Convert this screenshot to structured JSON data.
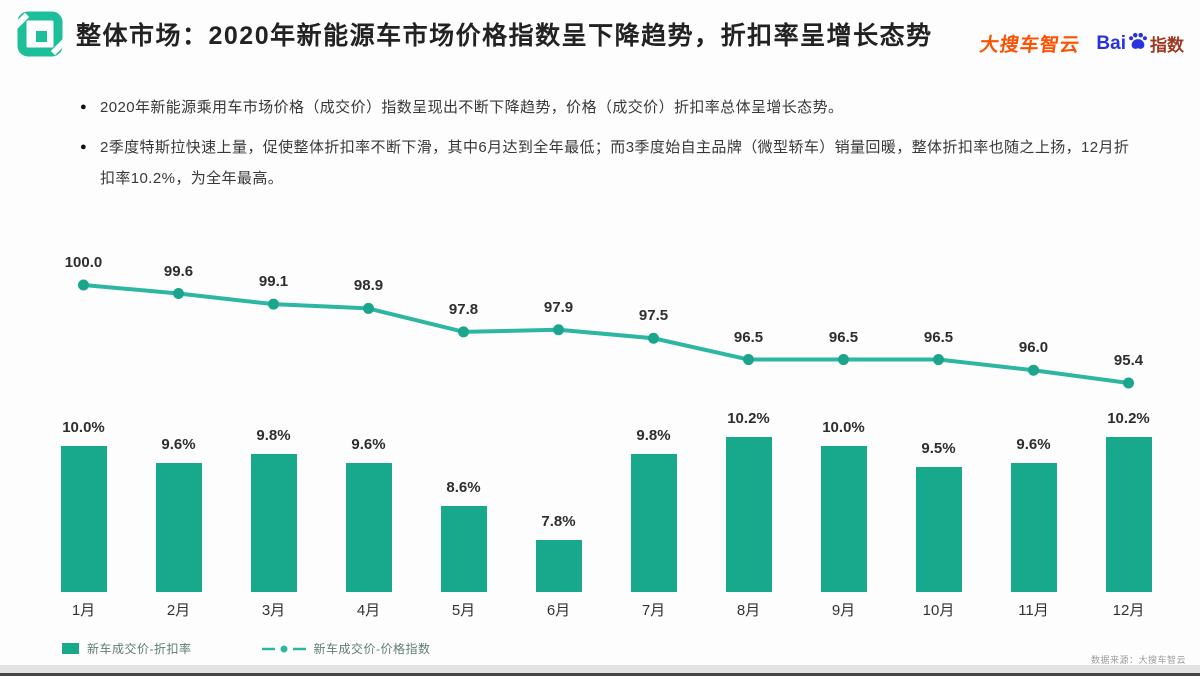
{
  "header": {
    "title": "整体市场：2020年新能源车市场价格指数呈下降趋势，折扣率呈增长态势",
    "brand_orange": "大搜车智云",
    "baidu_prefix": "Bai",
    "baidu_suffix": "指数"
  },
  "bullets": [
    {
      "marker": "●",
      "text": "2020年新能源乘用车市场价格（成交价）指数呈现出不断下降趋势，价格（成交价）折扣率总体呈增长态势。"
    },
    {
      "marker": "●",
      "text": "2季度特斯拉快速上量，促使整体折扣率不断下滑，其中6月达到全年最低；而3季度始自主品牌（微型轿车）销量回暖，整体折扣率也随之上扬，12月折扣率10.2%，为全年最高。"
    }
  ],
  "chart_data": {
    "type": "combo-bar-line",
    "categories": [
      "1月",
      "2月",
      "3月",
      "4月",
      "5月",
      "6月",
      "7月",
      "8月",
      "9月",
      "10月",
      "11月",
      "12月"
    ],
    "series": [
      {
        "name": "新车成交价-折扣率",
        "type": "bar",
        "unit": "%",
        "color": "#18a88b",
        "values": [
          10.0,
          9.6,
          9.8,
          9.6,
          8.6,
          7.8,
          9.8,
          10.2,
          10.0,
          9.5,
          9.6,
          10.2
        ]
      },
      {
        "name": "新车成交价-价格指数",
        "type": "line",
        "color": "#2db6a1",
        "point_color": "#1aa58c",
        "values": [
          100.0,
          99.6,
          99.1,
          98.9,
          97.8,
          97.9,
          97.5,
          96.5,
          96.5,
          96.5,
          96.0,
          95.4
        ]
      }
    ],
    "legend_position": "bottom",
    "grid": false,
    "axes_hidden": true
  },
  "footer": {
    "source": "数据来源：大搜车智云"
  },
  "colors": {
    "accent_teal": "#18a88b",
    "line_teal": "#2db6a1",
    "logo_teal": "#1dbf9b",
    "brand_orange": "#ff5000",
    "baidu_blue": "#2932e1",
    "baidu_red": "#9c3a22"
  }
}
